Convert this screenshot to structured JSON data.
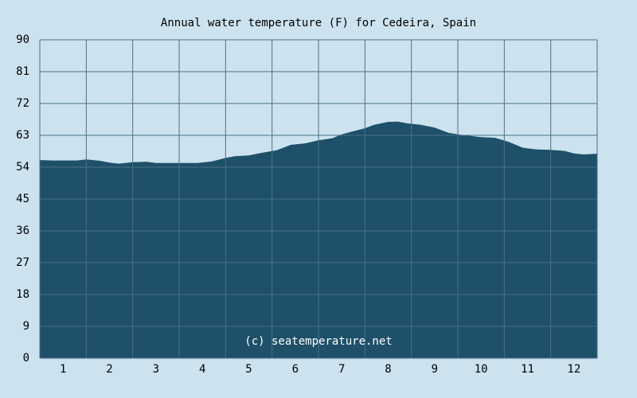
{
  "chart_data": {
    "type": "area",
    "title": "Annual water temperature (F) for Cedeira, Spain",
    "credit": "(c) seatemperature.net",
    "xlabel": "",
    "ylabel": "",
    "ylim": [
      0,
      90
    ],
    "y_ticks": [
      0,
      9,
      18,
      27,
      36,
      45,
      54,
      63,
      72,
      81,
      90
    ],
    "x_ticks": [
      1,
      2,
      3,
      4,
      5,
      6,
      7,
      8,
      9,
      10,
      11,
      12
    ],
    "xlim": [
      0.5,
      12.5
    ],
    "grid": true,
    "colors": {
      "background": "#cce3ef",
      "area_fill": "#1e5069",
      "grid_line": "#4a6f88",
      "plot_background": "#cce3ef"
    },
    "series": [
      {
        "x": [
          0.5,
          0.8,
          1.0,
          1.3,
          1.5,
          1.8,
          2.0,
          2.2,
          2.5,
          2.8,
          3.0,
          3.3,
          3.6,
          3.9,
          4.2,
          4.5,
          4.7,
          5.0,
          5.3,
          5.6,
          5.9,
          6.2,
          6.5,
          6.8,
          7.0,
          7.2,
          7.5,
          7.7,
          8.0,
          8.2,
          8.4,
          8.7,
          9.0,
          9.3,
          9.6,
          10.0,
          10.3,
          10.6,
          10.9,
          11.2,
          11.5,
          11.8,
          12.0,
          12.2,
          12.5
        ],
        "y": [
          56.0,
          55.9,
          55.9,
          55.9,
          56.2,
          55.8,
          55.3,
          55.0,
          55.4,
          55.5,
          55.2,
          55.2,
          55.2,
          55.2,
          55.6,
          56.6,
          57.1,
          57.3,
          58.1,
          58.8,
          60.3,
          60.7,
          61.6,
          62.2,
          63.3,
          64.0,
          65.0,
          66.0,
          66.8,
          66.9,
          66.4,
          66.0,
          65.2,
          63.7,
          63.1,
          62.5,
          62.3,
          61.1,
          59.5,
          59.0,
          58.9,
          58.6,
          57.9,
          57.6,
          57.8
        ]
      }
    ]
  }
}
